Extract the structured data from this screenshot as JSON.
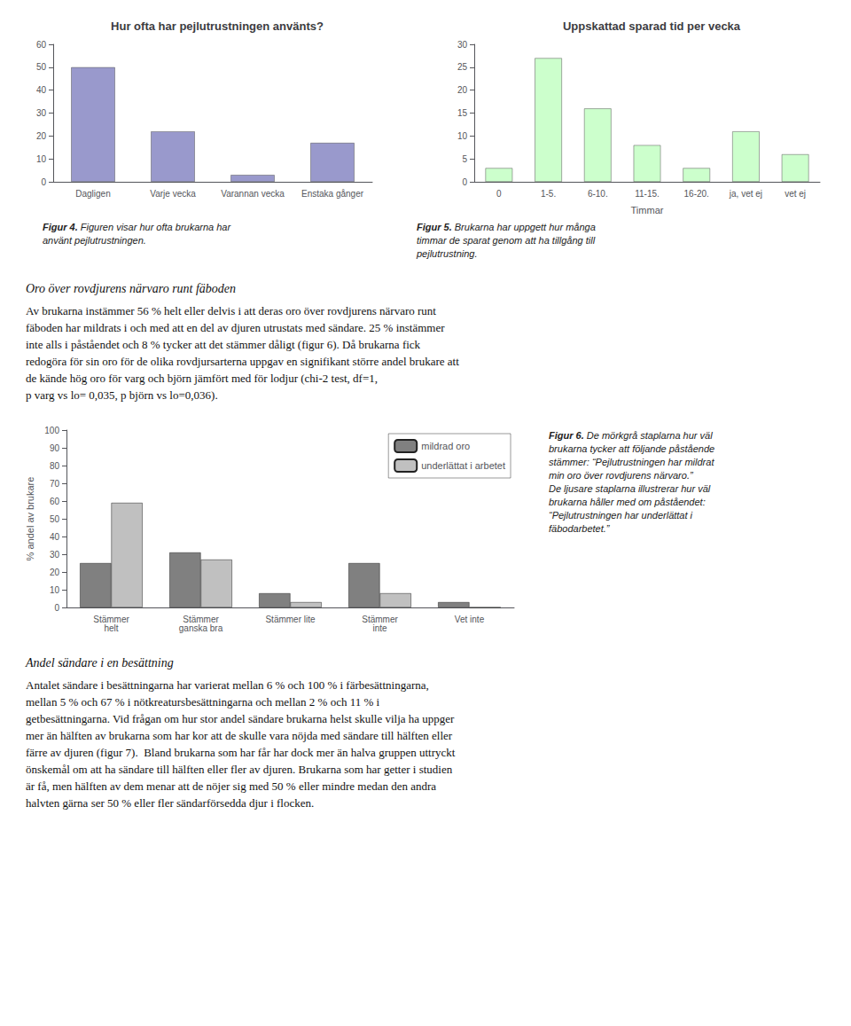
{
  "chart_data": [
    {
      "type": "bar",
      "title": "Hur ofta har pejlutrustningen använts?",
      "categories": [
        "Dagligen",
        "Varje vecka",
        "Varannan vecka",
        "Enstaka gånger"
      ],
      "values": [
        50,
        22,
        3,
        17
      ],
      "color": "#9999cc",
      "ylim": [
        0,
        60
      ],
      "yticks": [
        0,
        10,
        20,
        30,
        40,
        50,
        60
      ],
      "grid": false,
      "annotations": [
        "Figur 4. Figuren visar hur ofta brukarna har\nanvänt pejlutrustningen."
      ]
    },
    {
      "type": "bar",
      "title": "Uppskattad sparad tid per vecka",
      "xlabel": "Timmar",
      "categories": [
        "0",
        "1-5.",
        "6-10.",
        "11-15.",
        "16-20.",
        "ja, vet ej",
        "vet ej"
      ],
      "values": [
        3,
        27,
        16,
        8,
        3,
        11,
        6
      ],
      "color": "#ccffcc",
      "ylim": [
        0,
        30
      ],
      "yticks": [
        0,
        5,
        10,
        15,
        20,
        25,
        30
      ],
      "grid": false,
      "annotations": [
        "Figur 5. Brukarna har uppgett hur många\ntimmar de sparat genom att ha tillgång till\npejlutrustning."
      ]
    },
    {
      "type": "bar",
      "ylabel": "% andel av brukare",
      "categories": [
        "Stämmer\nhelt",
        "Stämmer\nganska bra",
        "Stämmer lite",
        "Stämmer\ninte",
        "Vet inte"
      ],
      "series": [
        {
          "name": "mildrad oro",
          "color": "#808080",
          "values": [
            25,
            31,
            8,
            25,
            3
          ]
        },
        {
          "name": "underlättat i arbetet",
          "color": "#c0c0c0",
          "values": [
            59,
            27,
            3,
            8,
            0
          ]
        }
      ],
      "ylim": [
        0,
        100
      ],
      "yticks": [
        0,
        10,
        20,
        30,
        40,
        50,
        60,
        70,
        80,
        90,
        100
      ],
      "grid": false,
      "legend": "upper right",
      "annotations": [
        "Figur 6. De mörkgrå staplarna hur väl\nbrukarna tycker att följande påstående\nstämmer: “Pejlutrustningen har mildrat\nmin oro över rovdjurens närvaro.”\nDe ljusare staplarna illustrerar hur väl\nbrukarna håller med om påståendet:\n“Pejlutrustningen har underlättat i\nfäbodarbetet.”"
      ]
    }
  ],
  "annotations": [
    {
      "title": "Oro över rovdjurens närvaro runt fäboden",
      "text": "Av brukarna instämmer 56 % helt eller delvis i att deras oro över rovdjurens närvaro runt\nfäboden har mildrats i och med att en del av djuren utrustats med sändare. 25 % instämmer\ninte alls i påståendet och 8 % tycker att det stämmer dåligt (figur 6). Då brukarna fick\nredogöra för sin oro för de olika rovdjursarterna uppgav en signifikant större andel brukare att\nde kände hög oro för varg och björn jämfört med för lodjur (chi-2 test, df=1,\np varg vs lo= 0,035, p björn vs lo=0,036)."
    },
    {
      "title": "Andel sändare i en besättning",
      "text": "Antalet sändare i besättningarna har varierat mellan 6 % och 100 % i färbesättningarna,\nmellan 5 % och 67 % i nötkreatursbesättningarna och mellan 2 % och 11 % i\ngetbesättningarna. Vid frågan om hur stor andel sändare brukarna helst skulle vilja ha uppger\nmer än hälften av brukarna som har kor att de skulle vara nöjda med sändare till hälften eller\nfärre av djuren (figur 7).  Bland brukarna som har får har dock mer än halva gruppen uttryckt\nönskemål om att ha sändare till hälften eller fler av djuren. Brukarna som har getter i studien\när få, men hälften av dem menar att de nöjer sig med 50 % eller mindre medan den andra\nhalvten gärna ser 50 % eller fler sändarförsedda djur i flocken."
    }
  ]
}
